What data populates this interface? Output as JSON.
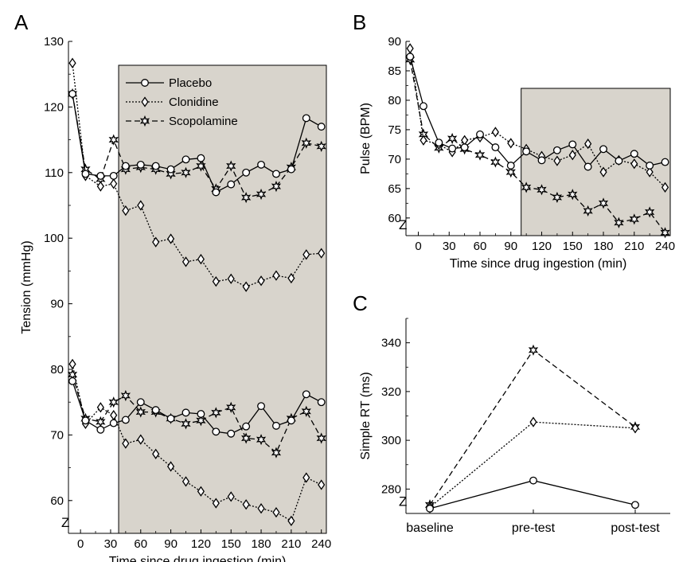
{
  "figure": {
    "panels": {
      "A": {
        "letter": "A"
      },
      "B": {
        "letter": "B"
      },
      "C": {
        "letter": "C"
      }
    },
    "axis_break_glyph": "Z"
  },
  "legend": {
    "entries": [
      {
        "series": "Placebo",
        "label": "Placebo"
      },
      {
        "series": "Clonidine",
        "label": "Clonidine"
      },
      {
        "series": "Scopolamine",
        "label": "Scopolamine"
      }
    ]
  },
  "styles": {
    "Placebo": {
      "dash": "",
      "marker": "circle"
    },
    "Clonidine": {
      "dash": "2,2",
      "marker": "diamond"
    },
    "Scopolamine": {
      "dash": "7,4",
      "marker": "star"
    },
    "shade_color": "#d8d4cc"
  },
  "chart_data": [
    {
      "panel": "A",
      "type": "line",
      "xlabel": "Time since drug ingestion (min)",
      "ylabel": "Tension (mmHg)",
      "xlim": [
        -12,
        245
      ],
      "ylim": [
        55,
        130
      ],
      "xticks": [
        0,
        30,
        60,
        90,
        120,
        150,
        180,
        210,
        240
      ],
      "xtick_labels": [
        "0",
        "30",
        "60",
        "90",
        "120",
        "150",
        "180",
        "210",
        "240"
      ],
      "yticks": [
        60,
        70,
        80,
        90,
        100,
        110,
        120,
        130
      ],
      "ytick_labels": [
        "60",
        "70",
        "80",
        "90",
        "100",
        "110",
        "120",
        "130"
      ],
      "shaded_x": [
        38,
        245
      ],
      "groups": [
        {
          "measure": "systolic",
          "series": [
            {
              "name": "Placebo",
              "x": [
                -8,
                5,
                20,
                33,
                45,
                60,
                75,
                90,
                105,
                120,
                135,
                150,
                165,
                180,
                195,
                210,
                225,
                240
              ],
              "values": [
                122,
                109.8,
                109.5,
                109.5,
                111,
                111.2,
                111,
                110.5,
                112,
                112.2,
                107,
                108.2,
                110,
                111.2,
                109.8,
                110.5,
                118.3,
                117
              ]
            },
            {
              "name": "Clonidine",
              "x": [
                -8,
                5,
                20,
                33,
                45,
                60,
                75,
                90,
                105,
                120,
                135,
                150,
                165,
                180,
                195,
                210,
                225,
                240
              ],
              "values": [
                126.7,
                109.5,
                107.9,
                108.3,
                104.2,
                105,
                99.4,
                99.9,
                96.4,
                96.8,
                93.4,
                93.8,
                92.6,
                93.5,
                94.3,
                93.9,
                97.5,
                97.7
              ]
            },
            {
              "name": "Scopolamine",
              "x": [
                -8,
                5,
                20,
                33,
                45,
                60,
                75,
                90,
                105,
                120,
                135,
                150,
                165,
                180,
                195,
                210,
                225,
                240
              ],
              "values": [
                122,
                110.5,
                109,
                115,
                110.5,
                110.8,
                110.5,
                109.8,
                110,
                111,
                107.5,
                111,
                106.2,
                106.7,
                107.9,
                110.8,
                114.5,
                114
              ]
            }
          ]
        },
        {
          "measure": "diastolic",
          "series": [
            {
              "name": "Placebo",
              "x": [
                -8,
                5,
                20,
                33,
                45,
                60,
                75,
                90,
                105,
                120,
                135,
                150,
                165,
                180,
                195,
                210,
                225,
                240
              ],
              "values": [
                78.2,
                72.2,
                70.8,
                71.8,
                72.3,
                75,
                73.8,
                72.5,
                73.4,
                73.2,
                70.5,
                70.2,
                71.3,
                74.4,
                71.4,
                72.2,
                76.2,
                75
              ]
            },
            {
              "name": "Clonidine",
              "x": [
                -8,
                5,
                20,
                33,
                45,
                60,
                75,
                90,
                105,
                120,
                135,
                150,
                165,
                180,
                195,
                210,
                225,
                240
              ],
              "values": [
                80.8,
                71.7,
                74.2,
                73,
                68.7,
                69.3,
                67.1,
                65.2,
                62.9,
                61.4,
                59.6,
                60.6,
                59.4,
                58.8,
                58.2,
                56.9,
                63.5,
                62.4
              ]
            },
            {
              "name": "Scopolamine",
              "x": [
                -8,
                5,
                20,
                33,
                45,
                60,
                75,
                90,
                105,
                120,
                135,
                150,
                165,
                180,
                195,
                210,
                225,
                240
              ],
              "values": [
                79.2,
                72.5,
                72,
                75,
                76,
                73.5,
                73.5,
                72.5,
                71.7,
                72.2,
                73.4,
                74.2,
                69.5,
                69.3,
                67.3,
                72.5,
                73.6,
                69.5
              ]
            }
          ]
        }
      ],
      "legend_position": "top-left inside shaded area"
    },
    {
      "panel": "B",
      "type": "line",
      "xlabel": "Time since drug ingestion (min)",
      "ylabel": "Pulse (BPM)",
      "xlim": [
        -12,
        245
      ],
      "ylim": [
        57,
        90
      ],
      "xticks": [
        0,
        30,
        60,
        90,
        120,
        150,
        180,
        210,
        240
      ],
      "xtick_labels": [
        "0",
        "30",
        "60",
        "90",
        "120",
        "150",
        "180",
        "210",
        "240"
      ],
      "yticks": [
        60,
        65,
        70,
        75,
        80,
        85,
        90
      ],
      "ytick_labels": [
        "60",
        "65",
        "70",
        "75",
        "80",
        "85",
        "90"
      ],
      "shaded_x": [
        100,
        245
      ],
      "series": [
        {
          "name": "Placebo",
          "x": [
            -8,
            5,
            20,
            33,
            45,
            60,
            75,
            90,
            105,
            120,
            135,
            150,
            165,
            180,
            195,
            210,
            225,
            240
          ],
          "values": [
            87.4,
            79,
            72.8,
            71.8,
            72,
            74.2,
            72,
            68.9,
            71.3,
            69.8,
            71.5,
            72.5,
            68.7,
            71.7,
            69.7,
            70.9,
            68.9,
            69.5
          ]
        },
        {
          "name": "Clonidine",
          "x": [
            -8,
            5,
            20,
            33,
            45,
            60,
            75,
            90,
            105,
            120,
            135,
            150,
            165,
            180,
            195,
            210,
            225,
            240
          ],
          "values": [
            88.8,
            73.2,
            72.5,
            71.2,
            73.2,
            73.7,
            74.6,
            72.7,
            71.7,
            70.5,
            69.7,
            70.7,
            72.6,
            67.8,
            69.8,
            69.2,
            67.8,
            65.2
          ]
        },
        {
          "name": "Scopolamine",
          "x": [
            -8,
            5,
            20,
            33,
            45,
            60,
            75,
            90,
            105,
            120,
            135,
            150,
            165,
            180,
            195,
            210,
            225,
            240
          ],
          "values": [
            86.9,
            74.2,
            71.9,
            73.5,
            71.7,
            70.7,
            69.5,
            67.8,
            65.2,
            64.8,
            63.5,
            64,
            61.2,
            62.5,
            59.2,
            59.8,
            61,
            57.5
          ]
        }
      ]
    },
    {
      "panel": "C",
      "type": "line",
      "xlabel": "",
      "ylabel": "Simple RT (ms)",
      "categories": [
        "baseline",
        "pre-test",
        "post-test"
      ],
      "ylim": [
        270,
        350
      ],
      "yticks": [
        280,
        300,
        320,
        340
      ],
      "ytick_labels": [
        "280",
        "300",
        "320",
        "340"
      ],
      "series": [
        {
          "name": "Placebo",
          "values": [
            272,
            283.5,
            273.5
          ]
        },
        {
          "name": "Clonidine",
          "values": [
            272.5,
            307.5,
            305
          ]
        },
        {
          "name": "Scopolamine",
          "values": [
            273.5,
            337,
            305.5
          ]
        }
      ]
    }
  ]
}
